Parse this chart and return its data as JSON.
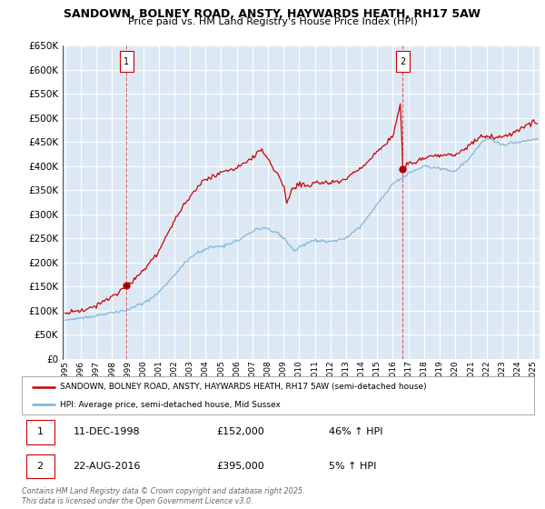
{
  "title_line1": "SANDOWN, BOLNEY ROAD, ANSTY, HAYWARDS HEATH, RH17 5AW",
  "title_line2": "Price paid vs. HM Land Registry's House Price Index (HPI)",
  "ylim": [
    0,
    650000
  ],
  "yticks": [
    0,
    50000,
    100000,
    150000,
    200000,
    250000,
    300000,
    350000,
    400000,
    450000,
    500000,
    550000,
    600000,
    650000
  ],
  "background_color": "#dce9f5",
  "fig_color": "#ffffff",
  "grid_color": "#ffffff",
  "red_line_color": "#cc0000",
  "blue_line_color": "#7bafd4",
  "sale1_year": 1998.95,
  "sale1_price": 152000,
  "sale2_year": 2016.64,
  "sale2_price": 395000,
  "legend_label_red": "SANDOWN, BOLNEY ROAD, ANSTY, HAYWARDS HEATH, RH17 5AW (semi-detached house)",
  "legend_label_blue": "HPI: Average price, semi-detached house, Mid Sussex",
  "annotation1_label": "1",
  "annotation1_date": "11-DEC-1998",
  "annotation1_price": "£152,000",
  "annotation1_hpi": "46% ↑ HPI",
  "annotation2_label": "2",
  "annotation2_date": "22-AUG-2016",
  "annotation2_price": "£395,000",
  "annotation2_hpi": "5% ↑ HPI",
  "footer": "Contains HM Land Registry data © Crown copyright and database right 2025.\nThis data is licensed under the Open Government Licence v3.0."
}
